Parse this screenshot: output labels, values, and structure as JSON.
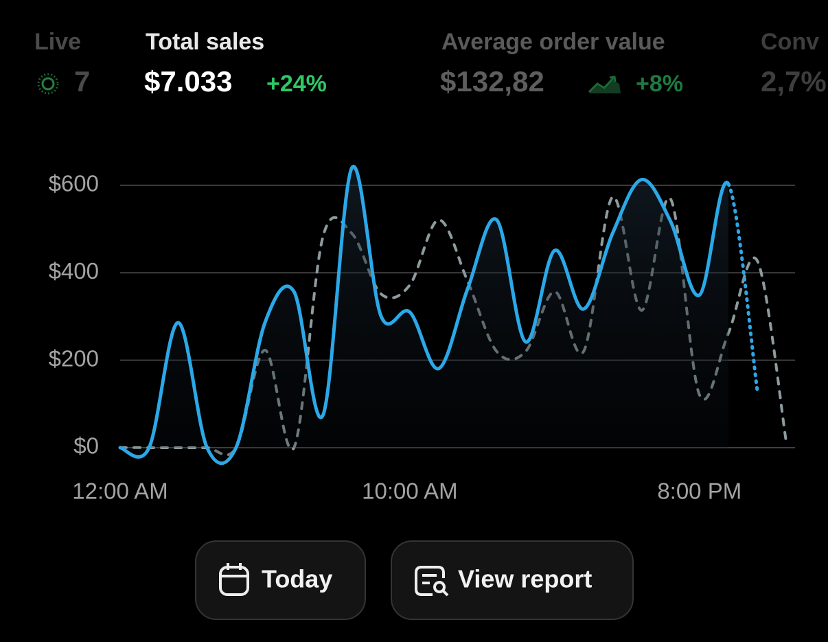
{
  "metrics": [
    {
      "label": "Live",
      "value": "7"
    },
    {
      "label": "Total sales",
      "value": "$7.033",
      "change": "+24%"
    },
    {
      "label": "Average order value",
      "value": "$132,82",
      "change": "+8%"
    },
    {
      "label": "Conv",
      "value": "2,7%"
    }
  ],
  "chart_data": {
    "type": "line",
    "x": [
      0,
      1,
      2,
      3,
      4,
      5,
      6,
      7,
      8,
      9,
      10,
      11,
      12,
      13,
      14,
      15,
      16,
      17,
      18,
      19,
      20,
      21,
      22,
      23
    ],
    "xlim": [
      0,
      23.3
    ],
    "xticks": [
      {
        "value": 0,
        "label": "12:00 AM"
      },
      {
        "value": 10,
        "label": "10:00 AM"
      },
      {
        "value": 20,
        "label": "8:00 PM"
      }
    ],
    "ylim": [
      0,
      650
    ],
    "yticks": [
      {
        "value": 0,
        "label": "$0"
      },
      {
        "value": 200,
        "label": "$200"
      },
      {
        "value": 400,
        "label": "$400"
      },
      {
        "value": 600,
        "label": "$600"
      }
    ],
    "grid": true,
    "series": [
      {
        "color": "#2ba8e8",
        "style": "solid",
        "dotted_from": 21,
        "values": [
          0,
          0,
          286,
          0,
          0,
          286,
          357,
          74,
          640,
          302,
          310,
          181,
          364,
          521,
          242,
          451,
          317,
          490,
          613,
          518,
          349,
          603,
          129,
          null
        ]
      },
      {
        "color": "#8c9b9d",
        "style": "dashed",
        "values": [
          0,
          0,
          0,
          0,
          0,
          223,
          0,
          482,
          490,
          352,
          372,
          521,
          380,
          220,
          220,
          357,
          220,
          573,
          314,
          569,
          121,
          262,
          427,
          11
        ]
      }
    ]
  },
  "buttons": [
    {
      "label": "Today"
    },
    {
      "label": "View report"
    }
  ]
}
